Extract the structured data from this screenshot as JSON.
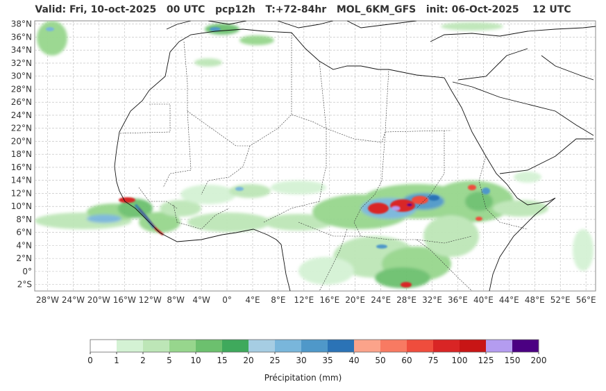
{
  "title": "Valid: Fri, 10-oct-2025   00 UTC   pcp12h   T:+72-84hr   MOL_6KM_GFS   init: 06-Oct-2025    12 UTC",
  "lat_labels": [
    "38°N",
    "36°N",
    "34°N",
    "32°N",
    "30°N",
    "28°N",
    "26°N",
    "24°N",
    "22°N",
    "20°N",
    "18°N",
    "16°N",
    "14°N",
    "12°N",
    "10°N",
    "8°N",
    "6°N",
    "4°N",
    "2°N",
    "0°",
    "2°S"
  ],
  "lon_labels": [
    "28°W",
    "24°W",
    "20°W",
    "16°W",
    "12°W",
    "8°W",
    "4°W",
    "0°",
    "4°E",
    "8°E",
    "12°E",
    "16°E",
    "20°E",
    "24°E",
    "28°E",
    "32°E",
    "36°E",
    "40°E",
    "44°E",
    "48°E",
    "52°E",
    "56°E"
  ],
  "colorbar": {
    "label": "Précipitation (mm)",
    "ticks": [
      "0",
      "1",
      "2",
      "5",
      "10",
      "15",
      "20",
      "25",
      "30",
      "35",
      "40",
      "50",
      "60",
      "75",
      "100",
      "125",
      "150",
      "200"
    ],
    "colors": [
      "#ffffff",
      "#d4f2d4",
      "#bde6b7",
      "#97d68d",
      "#6cc06e",
      "#3fa95c",
      "#a6cde3",
      "#79b6db",
      "#4f98c9",
      "#2b73b6",
      "#fba38a",
      "#f87a62",
      "#ef4d3d",
      "#d92525",
      "#c81515",
      "#b49cf0",
      "#4b0082"
    ]
  },
  "map": {
    "domain_lon": [
      -30,
      57.5
    ],
    "domain_lat": [
      -3,
      38.5
    ],
    "grid": true
  }
}
